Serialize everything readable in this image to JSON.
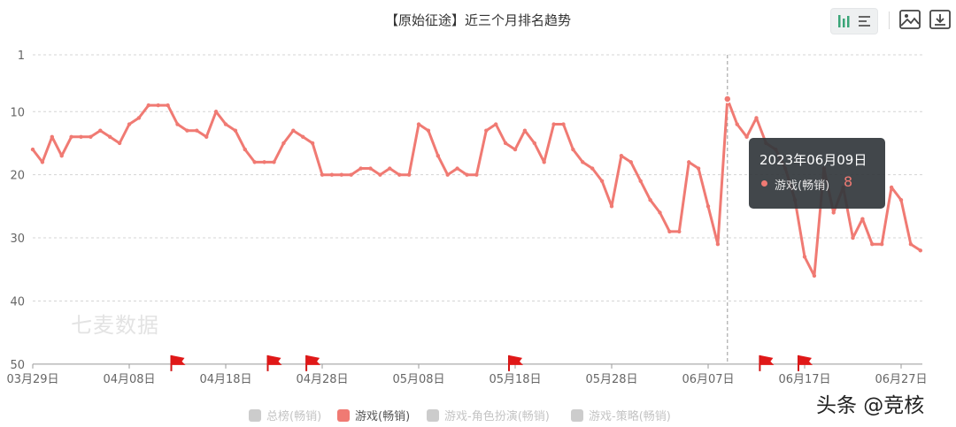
{
  "title": "【原始征途】近三个月排名趋势",
  "watermark": "七麦数据",
  "credit": "头条 @竞核",
  "toolbar": {
    "icons": [
      "bar-chart-icon",
      "list-icon",
      "image-save-icon",
      "download-icon"
    ]
  },
  "tooltip": {
    "date": "2023年06月09日",
    "series": "游戏(畅销)",
    "value": "8",
    "color": "#f07a73"
  },
  "legend": [
    {
      "label": "总榜(畅销)",
      "color": "#cccccc",
      "active": false
    },
    {
      "label": "游戏(畅销)",
      "color": "#f07a73",
      "active": true
    },
    {
      "label": "游戏-角色扮演(畅销)",
      "color": "#cccccc",
      "active": false
    },
    {
      "label": "游戏-策略(畅销)",
      "color": "#cccccc",
      "active": false
    }
  ],
  "chart_data": {
    "type": "line",
    "x_start": "03月29日",
    "x_tick_labels": [
      "03月29日",
      "04月08日",
      "04月18日",
      "04月28日",
      "05月08日",
      "05月18日",
      "05月28日",
      "06月07日",
      "06月17日",
      "06月27日"
    ],
    "y_tick_labels": [
      "1",
      "10",
      "20",
      "30",
      "40",
      "50"
    ],
    "y_ticks": [
      1,
      10,
      20,
      30,
      40,
      50
    ],
    "ylim": [
      1,
      50
    ],
    "y_inverted": true,
    "grid": true,
    "series": [
      {
        "name": "游戏(畅销)",
        "color": "#f07a73",
        "values": [
          16,
          18,
          14,
          17,
          14,
          14,
          14,
          13,
          14,
          15,
          12,
          11,
          9,
          9,
          9,
          12,
          13,
          13,
          14,
          10,
          12,
          13,
          16,
          18,
          18,
          18,
          15,
          13,
          14,
          15,
          20,
          20,
          20,
          20,
          19,
          19,
          20,
          19,
          20,
          20,
          12,
          13,
          17,
          20,
          19,
          20,
          20,
          13,
          12,
          15,
          16,
          13,
          15,
          18,
          12,
          12,
          16,
          18,
          19,
          21,
          25,
          17,
          18,
          21,
          24,
          26,
          29,
          29,
          18,
          19,
          25,
          31,
          8,
          12,
          14,
          11,
          15,
          16,
          19,
          24,
          33,
          36,
          19,
          26,
          22,
          30,
          27,
          31,
          31,
          22,
          24,
          31,
          32
        ]
      }
    ],
    "highlight_index": 72,
    "flag_indices": [
      15,
      25,
      29,
      50,
      76,
      80
    ]
  }
}
